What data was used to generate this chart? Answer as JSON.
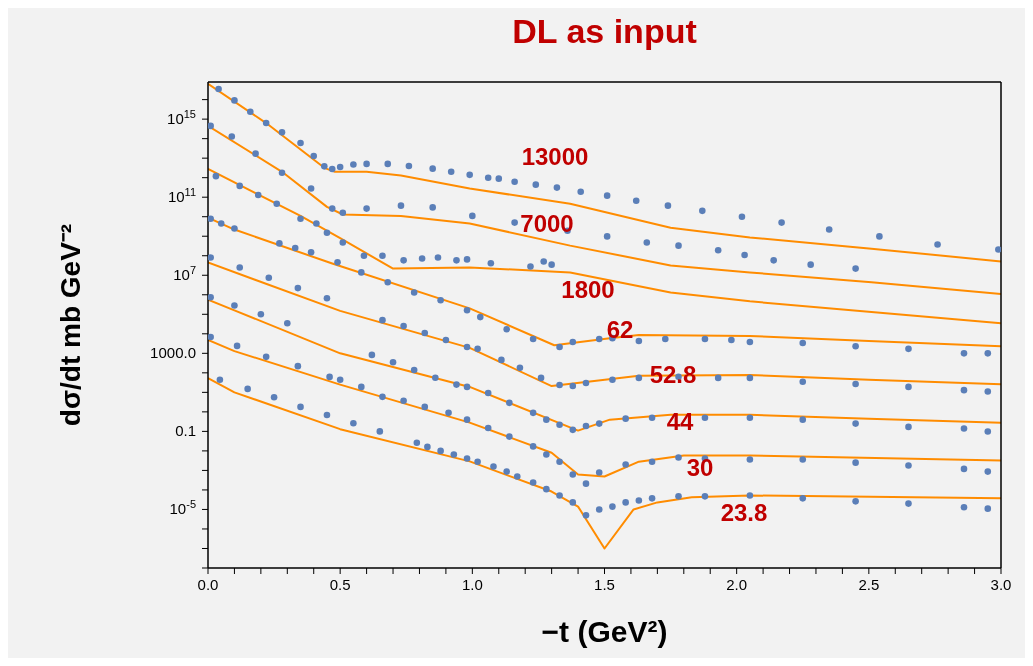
{
  "chart_data": {
    "type": "scatter",
    "title": "DL as input",
    "xlabel": "−t (GeV²)",
    "ylabel": "dσ/dt mb GeV⁻²",
    "log": "y",
    "xlim": [
      0,
      3
    ],
    "ylim": [
      1e-08,
      8e+16
    ],
    "xticks": [
      {
        "value": 0,
        "label": "0.0"
      },
      {
        "value": 0.1,
        "label": null
      },
      {
        "value": 0.2,
        "label": null
      },
      {
        "value": 0.3,
        "label": null
      },
      {
        "value": 0.4,
        "label": null
      },
      {
        "value": 0.5,
        "label": "0.5"
      },
      {
        "value": 0.6,
        "label": null
      },
      {
        "value": 0.7,
        "label": null
      },
      {
        "value": 0.8,
        "label": null
      },
      {
        "value": 0.9,
        "label": null
      },
      {
        "value": 1,
        "label": "1.0"
      },
      {
        "value": 1.1,
        "label": null
      },
      {
        "value": 1.2,
        "label": null
      },
      {
        "value": 1.3,
        "label": null
      },
      {
        "value": 1.4,
        "label": null
      },
      {
        "value": 1.5,
        "label": "1.5"
      },
      {
        "value": 1.6,
        "label": null
      },
      {
        "value": 1.7,
        "label": null
      },
      {
        "value": 1.8,
        "label": null
      },
      {
        "value": 1.9,
        "label": null
      },
      {
        "value": 2,
        "label": "2.0"
      },
      {
        "value": 2.1,
        "label": null
      },
      {
        "value": 2.2,
        "label": null
      },
      {
        "value": 2.3,
        "label": null
      },
      {
        "value": 2.4,
        "label": null
      },
      {
        "value": 2.5,
        "label": "2.5"
      },
      {
        "value": 2.6,
        "label": null
      },
      {
        "value": 2.7,
        "label": null
      },
      {
        "value": 2.8,
        "label": null
      },
      {
        "value": 2.9,
        "label": null
      },
      {
        "value": 3,
        "label": "3.0"
      }
    ],
    "yticks": [
      {
        "value": 1e-08,
        "label": null
      },
      {
        "value": 1e-07,
        "label": null
      },
      {
        "value": 1e-06,
        "label": null
      },
      {
        "value": 1e-05,
        "label": "10$^{-5}$"
      },
      {
        "value": 0.0001,
        "label": null
      },
      {
        "value": 0.001,
        "label": null
      },
      {
        "value": 0.01,
        "label": null
      },
      {
        "value": 0.1,
        "label": "0.1"
      },
      {
        "value": 1,
        "label": null
      },
      {
        "value": 10,
        "label": null
      },
      {
        "value": 100,
        "label": null
      },
      {
        "value": 1000,
        "label": "1000.0"
      },
      {
        "value": 10000.0,
        "label": null
      },
      {
        "value": 100000.0,
        "label": null
      },
      {
        "value": 1000000.0,
        "label": null
      },
      {
        "value": 10000000.0,
        "label": "10$^{7}$"
      },
      {
        "value": 100000000.0,
        "label": null
      },
      {
        "value": 1000000000.0,
        "label": null
      },
      {
        "value": 10000000000.0,
        "label": null
      },
      {
        "value": 100000000000.0,
        "label": "10$^{11}$"
      },
      {
        "value": 1000000000000.0,
        "label": null
      },
      {
        "value": 10000000000000.0,
        "label": null
      },
      {
        "value": 100000000000000.0,
        "label": null
      },
      {
        "value": 1000000000000000.0,
        "label": "10$^{15}$"
      },
      {
        "value": 1e+16,
        "label": null
      }
    ],
    "annotations": [
      "13000",
      "7000",
      "1800",
      "62",
      "52.8",
      "44",
      "30",
      "23.8"
    ],
    "series": [
      {
        "type": "line",
        "color": "#ff8c00",
        "line_style": "solid",
        "x": [
          0,
          0.22,
          0.44,
          0.48,
          0.6,
          0.73,
          0.99,
          1.37,
          1.75,
          2.05,
          2.51,
          3.0
        ],
        "values": [
          6.5e+16,
          630000000000000.0,
          3200000000000.0,
          2000000000000.0,
          2000000000000.0,
          1300000000000.0,
          280000000000.0,
          46000000000.0,
          2700000000.0,
          870000000.0,
          230000000.0,
          51000000.0
        ]
      },
      {
        "type": "line",
        "color": "#ff8c00",
        "line_style": "solid",
        "x": [
          0,
          0.28,
          0.45,
          0.51,
          0.73,
          0.99,
          1.37,
          1.75,
          2.05,
          2.51,
          3.0
        ],
        "values": [
          450000000000000.0,
          2000000000000.0,
          32000000000.0,
          13000000000.0,
          11000000000.0,
          4500000000.0,
          330000000.0,
          32000000.0,
          14000000.0,
          4400000.0,
          1100000.0
        ]
      },
      {
        "type": "line",
        "color": "#ff8c00",
        "line_style": "solid",
        "x": [
          0,
          0.35,
          0.5,
          0.7,
          0.99,
          1.37,
          1.75,
          2.05,
          2.51,
          3.0
        ],
        "values": [
          2800000000000.0,
          11000000000.0,
          790000000.0,
          22000000.0,
          25000000.0,
          14000000.0,
          1300000.0,
          460000.0,
          130000.0,
          35000.0
        ]
      },
      {
        "type": "line",
        "color": "#ff8c00",
        "line_style": "solid",
        "x": [
          0,
          0.1,
          0.47,
          0.99,
          1.31,
          1.52,
          1.63,
          2.05,
          2.5,
          3.0
        ],
        "values": [
          8900000000.0,
          2200000000.0,
          40000000.0,
          200000.0,
          2600.0,
          6000.0,
          8700.0,
          7800.0,
          4300.0,
          2300.0
        ]
      },
      {
        "type": "line",
        "color": "#ff8c00",
        "line_style": "solid",
        "x": [
          0,
          0.5,
          0.99,
          1.3,
          1.63,
          2.05,
          2.5,
          3.0
        ],
        "values": [
          45000000.0,
          150000.0,
          1900.0,
          21,
          71,
          78,
          44,
          26
        ]
      },
      {
        "type": "line",
        "color": "#ff8c00",
        "line_style": "solid",
        "x": [
          0,
          0.1,
          0.5,
          0.99,
          1.4,
          1.52,
          1.75,
          2.05,
          2.5,
          3.0
        ],
        "values": [
          560000.0,
          160000.0,
          1000.0,
          19,
          0.11,
          0.4,
          0.72,
          0.71,
          0.45,
          0.28
        ]
      },
      {
        "type": "line",
        "color": "#ff8c00",
        "line_style": "solid",
        "x": [
          0,
          0.1,
          0.5,
          0.99,
          1.3,
          1.4,
          1.5,
          1.63,
          1.8,
          2.05,
          3.0
        ],
        "values": [
          4800.0,
          1300.0,
          25,
          0.28,
          0.0081,
          0.00062,
          0.00049,
          0.0028,
          0.0058,
          0.0058,
          0.0032
        ]
      },
      {
        "type": "line",
        "color": "#ff8c00",
        "line_style": "solid",
        "x": [
          0,
          0.1,
          0.5,
          0.99,
          1.3,
          1.4,
          1.5,
          1.61,
          1.7,
          1.83,
          2.05,
          3.0
        ],
        "values": [
          54,
          10,
          0.13,
          0.0029,
          8.3e-05,
          1.4e-05,
          1e-07,
          1e-05,
          2.3e-05,
          4.2e-05,
          5.2e-05,
          3.7e-05
        ]
      },
      {
        "color": "#5b7fb8",
        "marker": "circle",
        "x": [
          0.04,
          0.1,
          0.16,
          0.22,
          0.28,
          0.35,
          0.4,
          0.44,
          0.47,
          0.5,
          0.55,
          0.6,
          0.68,
          0.76,
          0.85,
          0.92,
          0.99,
          1.06,
          1.1,
          1.16,
          1.24,
          1.32,
          1.41,
          1.51,
          1.62,
          1.74,
          1.87,
          2.02,
          2.17,
          2.35,
          2.54,
          2.76,
          2.99
        ],
        "values": [
          3.5e+16,
          9100000000000000.0,
          2400000000000000.0,
          630000000000000.0,
          210000000000000.0,
          60000000000000.0,
          13000000000000.0,
          3800000000000.0,
          2800000000000.0,
          3500000000000.0,
          4700000000000.0,
          5100000000000.0,
          5100000000000.0,
          4000000000000.0,
          2900000000000.0,
          2000000000000.0,
          1400000000000.0,
          1000000000000.0,
          890000000000.0,
          620000000000.0,
          440000000000.0,
          310000000000.0,
          190000000000.0,
          120000000000.0,
          66000000000.0,
          37000000000.0,
          20000000000.0,
          10000000000.0,
          5000000000.0,
          2200000000.0,
          980000000.0,
          380000000.0,
          210000000.0
        ]
      },
      {
        "color": "#5b7fb8",
        "marker": "circle",
        "x": [
          0.01,
          0.09,
          0.18,
          0.28,
          0.39,
          0.47,
          0.51,
          0.6,
          0.73,
          0.85,
          1.0,
          1.16,
          1.36,
          1.51,
          1.66,
          1.78,
          1.93,
          2.03,
          2.14,
          2.28,
          2.45
        ],
        "values": [
          450000000000000.0,
          130000000000000.0,
          17000000000000.0,
          1800000000000.0,
          280000000000.0,
          26000000000.0,
          16000000000.0,
          26000000000.0,
          37000000000.0,
          30000000000.0,
          11000000000.0,
          5000000000.0,
          1900000000.0,
          980000000.0,
          480000000.0,
          330000000.0,
          190000000.0,
          110000000.0,
          58000000.0,
          35000000.0,
          22000000.0
        ]
      },
      {
        "color": "#5b7fb8",
        "marker": "circle",
        "x": [
          0.03,
          0.12,
          0.19,
          0.26,
          0.35,
          0.41,
          0.45,
          0.51,
          0.59,
          0.66,
          0.74,
          0.81,
          0.87,
          0.94,
          0.98,
          1.07,
          1.22,
          1.27,
          1.3
        ],
        "values": [
          1200000000000.0,
          380000000000.0,
          130000000000.0,
          46000000000.0,
          7900000000.0,
          4500000000.0,
          1500000000.0,
          480000000.0,
          100000000.0,
          100000000.0,
          58000000.0,
          72000000.0,
          81000000.0,
          58000000.0,
          65000000.0,
          41000000.0,
          28000000.0,
          51000000.0,
          35000000.0
        ]
      },
      {
        "color": "#5b7fb8",
        "marker": "circle",
        "x": [
          0.01,
          0.05,
          0.1,
          0.27,
          0.33,
          0.39,
          0.49,
          0.58,
          0.68,
          0.78,
          0.88,
          0.98,
          1.03,
          1.13,
          1.23,
          1.33,
          1.38,
          1.48,
          1.53,
          1.63,
          1.73,
          1.88,
          1.98,
          2.05,
          2.25,
          2.45,
          2.65,
          2.86,
          2.95
        ],
        "values": [
          7900000000.0,
          4500000000.0,
          2500000000.0,
          430000000.0,
          250000000.0,
          150000000.0,
          46000000.0,
          14000000.0,
          4400000.0,
          1300000.0,
          520000.0,
          160000.0,
          72000.0,
          17000.0,
          5400.0,
          2100.0,
          3800.0,
          5400.0,
          6000.0,
          4300.0,
          5400.0,
          5400.0,
          4800.0,
          3800.0,
          3400.0,
          2300.0,
          1700.0,
          1000.0,
          1000.0
        ]
      },
      {
        "color": "#5b7fb8",
        "marker": "circle",
        "x": [
          0.01,
          0.12,
          0.23,
          0.34,
          0.45,
          0.66,
          0.74,
          0.82,
          0.9,
          0.98,
          1.02,
          1.11,
          1.18,
          1.26,
          1.33,
          1.38,
          1.43,
          1.53,
          1.63,
          1.78,
          1.93,
          2.05,
          2.25,
          2.45,
          2.65,
          2.86,
          2.95
        ],
        "values": [
          81000000.0,
          25000000.0,
          7400000.0,
          2200000.0,
          660000.0,
          50000.0,
          25000.0,
          11000.0,
          4800.0,
          2100.0,
          1700.0,
          460.0,
          180.0,
          55,
          24,
          21,
          30,
          44,
          55,
          63,
          55,
          55,
          35,
          27,
          19,
          13,
          11
        ]
      },
      {
        "color": "#5b7fb8",
        "marker": "circle",
        "x": [
          0.01,
          0.1,
          0.2,
          0.3,
          0.62,
          0.7,
          0.78,
          0.86,
          0.94,
          0.98,
          1.06,
          1.14,
          1.23,
          1.28,
          1.33,
          1.38,
          1.43,
          1.48,
          1.58,
          1.68,
          1.88,
          2.05,
          2.25,
          2.45,
          2.65,
          2.86,
          2.95
        ],
        "values": [
          740000.0,
          280000.0,
          100000.0,
          35000.0,
          830,
          350,
          140,
          56,
          25,
          19,
          9.3,
          2.9,
          0.89,
          0.4,
          0.22,
          0.12,
          0.19,
          0.25,
          0.45,
          0.5,
          0.5,
          0.5,
          0.4,
          0.25,
          0.17,
          0.14,
          0.098
        ]
      },
      {
        "color": "#5b7fb8",
        "marker": "circle",
        "x": [
          0.01,
          0.11,
          0.22,
          0.34,
          0.46,
          0.5,
          0.58,
          0.66,
          0.74,
          0.82,
          0.91,
          0.98,
          1.06,
          1.14,
          1.23,
          1.28,
          1.33,
          1.38,
          1.43,
          1.48,
          1.58,
          1.68,
          1.78,
          1.88,
          2.05,
          2.25,
          2.45,
          2.65,
          2.86,
          2.95
        ],
        "values": [
          6900.0,
          2400.0,
          660,
          220,
          62,
          44,
          19,
          5.9,
          3.7,
          1.8,
          0.89,
          0.4,
          0.15,
          0.054,
          0.017,
          0.0065,
          0.0028,
          0.00062,
          0.00021,
          0.00078,
          0.002,
          0.0028,
          0.0046,
          0.0041,
          0.0036,
          0.0036,
          0.0025,
          0.0018,
          0.0012,
          0.00087
        ]
      },
      {
        "color": "#5b7fb8",
        "marker": "circle",
        "x": [
          0.045,
          0.15,
          0.25,
          0.35,
          0.45,
          0.55,
          0.65,
          0.79,
          0.83,
          0.88,
          0.93,
          0.98,
          1.02,
          1.08,
          1.13,
          1.17,
          1.23,
          1.28,
          1.33,
          1.38,
          1.43,
          1.48,
          1.53,
          1.58,
          1.63,
          1.68,
          1.78,
          1.88,
          2.05,
          2.25,
          2.45,
          2.65,
          2.86,
          2.95
        ],
        "values": [
          44,
          15,
          5.6,
          1.8,
          0.69,
          0.26,
          0.1,
          0.026,
          0.016,
          0.01,
          0.0065,
          0.0041,
          0.0028,
          0.0016,
          0.00087,
          0.00049,
          0.00024,
          0.00011,
          5.2e-05,
          2.3e-05,
          5e-06,
          1e-05,
          1.4e-05,
          2.3e-05,
          2.9e-05,
          3.7e-05,
          4.7e-05,
          4.7e-05,
          5.2e-05,
          3.7e-05,
          2.6e-05,
          2e-05,
          1.3e-05,
          1.1e-05
        ]
      }
    ]
  }
}
